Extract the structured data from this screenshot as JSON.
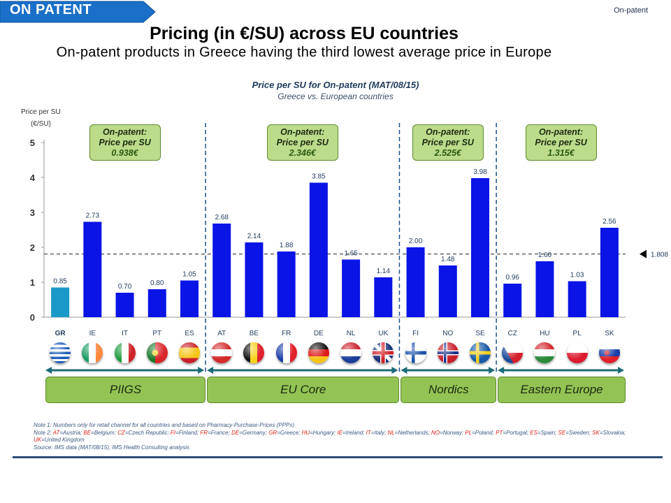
{
  "header": {
    "tag": "ON PATENT",
    "corner": "On-patent",
    "title": "Pricing (in €/SU) across EU countries",
    "subtitle": "On-patent products in Greece having the third lowest average price in Europe"
  },
  "chart_data": {
    "type": "bar",
    "title": "Price per SU for On-patent (MAT/08/15)",
    "subtitle": "Greece vs. European countries",
    "ylabel_line1": "Price per SU",
    "ylabel_line2": "(€/SU)",
    "ylim": [
      0,
      5
    ],
    "yticks": [
      "0",
      "1",
      "2",
      "3",
      "4",
      "5"
    ],
    "categories": [
      "GR",
      "IE",
      "IT",
      "PT",
      "ES",
      "AT",
      "BE",
      "FR",
      "DE",
      "NL",
      "UK",
      "FI",
      "NO",
      "SE",
      "CZ",
      "HU",
      "PL",
      "SK"
    ],
    "values": [
      0.85,
      2.73,
      0.7,
      0.8,
      1.05,
      2.68,
      2.14,
      1.88,
      3.85,
      1.65,
      1.14,
      2.0,
      1.48,
      3.98,
      0.96,
      1.6,
      1.03,
      2.56
    ],
    "value_labels": [
      "0.85",
      "2.73",
      "0.70",
      "0.80",
      "1.05",
      "2.68",
      "2.14",
      "1.88",
      "3.85",
      "1.65",
      "1.14",
      "2.00",
      "1.48",
      "3.98",
      "0.96",
      "1.60",
      "1.03",
      "2.56"
    ],
    "highlight": "GR",
    "colors": {
      "bar": "#0a14e6",
      "highlight": "#1a98c8",
      "text": "#1f3a5a"
    },
    "average": {
      "value": 1.808,
      "label": "1.808"
    },
    "groups": [
      {
        "name": "PIIGS",
        "callout_line1": "On-patent:",
        "callout_line2": "Price per SU",
        "callout_value": "0.938€"
      },
      {
        "name": "EU Core",
        "callout_line1": "On-patent:",
        "callout_line2": "Price per SU",
        "callout_value": "2.346€"
      },
      {
        "name": "Nordics",
        "callout_line1": "On-patent:",
        "callout_line2": "Price per SU",
        "callout_value": "2.525€"
      },
      {
        "name": "Eastern Europe",
        "callout_line1": "On-patent:",
        "callout_line2": "Price per SU",
        "callout_value": "1.315€"
      }
    ],
    "grid": false
  },
  "notes": {
    "note1": "Note 1: Numbers only for retail channel for all countries and based on Pharmacy-Purchase-Prices (PPPs)",
    "note2_prefix": "Note 2: ",
    "note2": [
      [
        "AT",
        "Austria"
      ],
      [
        "BE",
        "Belgium"
      ],
      [
        "CZ",
        "Czech Republic"
      ],
      [
        "FI",
        "Finland"
      ],
      [
        "FR",
        "France"
      ],
      [
        "DE",
        "Germany"
      ],
      [
        "GR",
        "Greece"
      ],
      [
        "HU",
        "Hungary"
      ],
      [
        "IE",
        "Ireland"
      ],
      [
        "IT",
        "Italy"
      ],
      [
        "NL",
        "Netherlands"
      ],
      [
        "NO",
        "Norway"
      ],
      [
        "PL",
        "Poland"
      ],
      [
        "PT",
        "Portugal"
      ],
      [
        "ES",
        "Spain"
      ],
      [
        "SE",
        "Sweden"
      ],
      [
        "SK",
        "Slovakia"
      ],
      [
        "UK",
        "United Kingdom"
      ]
    ],
    "source": "Source: IMS data (MAT/08/15), IMS Health Consulting analysis"
  },
  "flags": {
    "GR": "greece-flag-icon",
    "IE": "ireland-flag-icon",
    "IT": "italy-flag-icon",
    "PT": "portugal-flag-icon",
    "ES": "spain-flag-icon",
    "AT": "austria-flag-icon",
    "BE": "belgium-flag-icon",
    "FR": "france-flag-icon",
    "DE": "germany-flag-icon",
    "NL": "netherlands-flag-icon",
    "UK": "uk-flag-icon",
    "FI": "finland-flag-icon",
    "NO": "norway-flag-icon",
    "SE": "sweden-flag-icon",
    "CZ": "czech-flag-icon",
    "HU": "hungary-flag-icon",
    "PL": "poland-flag-icon",
    "SK": "slovakia-flag-icon"
  }
}
